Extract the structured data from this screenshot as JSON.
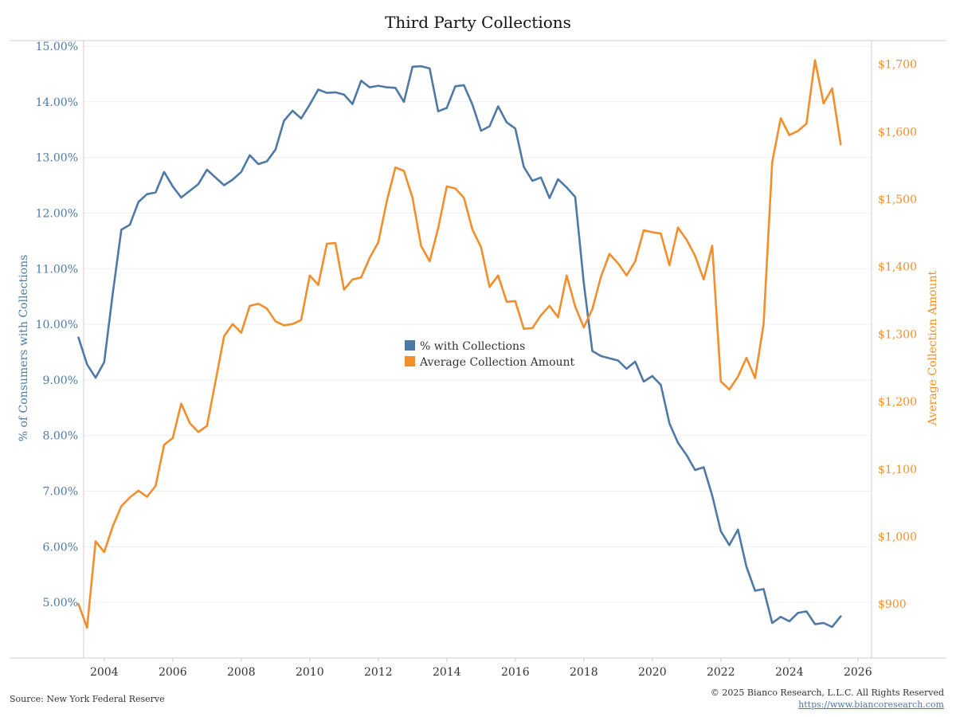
{
  "chart_data": {
    "type": "line",
    "title": "Third Party Collections",
    "ylabel_left": "% of Consumers with Collections",
    "ylabel_right": "Average Collection Amount",
    "x_ticks": [
      "2004",
      "2006",
      "2008",
      "2010",
      "2012",
      "2014",
      "2016",
      "2018",
      "2020",
      "2022",
      "2024",
      "2026"
    ],
    "y_left_ticks": [
      "5.00%",
      "6.00%",
      "7.00%",
      "8.00%",
      "9.00%",
      "10.00%",
      "11.00%",
      "12.00%",
      "13.00%",
      "14.00%",
      "15.00%"
    ],
    "y_right_ticks": [
      "$900",
      "$1,000",
      "$1,100",
      "$1,200",
      "$1,300",
      "$1,400",
      "$1,500",
      "$1,600",
      "$1,700"
    ],
    "ylim_left": [
      4.0,
      15.1
    ],
    "ylim_right": [
      820,
      1735
    ],
    "xlim": [
      2003.4,
      2026.4
    ],
    "grid": true,
    "legend_position": "center",
    "colors": {
      "pct": "#4e79a7",
      "amount": "#f28e2b"
    },
    "series": [
      {
        "name": "% with Collections",
        "axis": "left",
        "x": [
          2003.25,
          2003.5,
          2003.75,
          2004.0,
          2004.25,
          2004.5,
          2004.75,
          2005.0,
          2005.25,
          2005.5,
          2005.75,
          2006.0,
          2006.25,
          2006.5,
          2006.75,
          2007.0,
          2007.25,
          2007.5,
          2007.75,
          2008.0,
          2008.25,
          2008.5,
          2008.75,
          2009.0,
          2009.25,
          2009.5,
          2009.75,
          2010.0,
          2010.25,
          2010.5,
          2010.75,
          2011.0,
          2011.25,
          2011.5,
          2011.75,
          2012.0,
          2012.25,
          2012.5,
          2012.75,
          2013.0,
          2013.25,
          2013.5,
          2013.75,
          2014.0,
          2014.25,
          2014.5,
          2014.75,
          2015.0,
          2015.25,
          2015.5,
          2015.75,
          2016.0,
          2016.25,
          2016.5,
          2016.75,
          2017.0,
          2017.25,
          2017.5,
          2017.75,
          2018.0,
          2018.25,
          2018.5,
          2018.75,
          2019.0,
          2019.25,
          2019.5,
          2019.75,
          2020.0,
          2020.25,
          2020.5,
          2020.75,
          2021.0,
          2021.25,
          2021.5,
          2021.75,
          2022.0,
          2022.25,
          2022.5,
          2022.75,
          2023.0,
          2023.25,
          2023.5,
          2023.75,
          2024.0,
          2024.25,
          2024.5,
          2024.75,
          2025.0,
          2025.25,
          2025.5
        ],
        "values": [
          9.76,
          9.28,
          9.04,
          9.32,
          10.55,
          11.7,
          11.79,
          12.2,
          12.34,
          12.37,
          12.74,
          12.48,
          12.28,
          12.4,
          12.52,
          12.78,
          12.64,
          12.5,
          12.6,
          12.74,
          13.04,
          12.88,
          12.93,
          13.14,
          13.66,
          13.84,
          13.7,
          13.95,
          14.22,
          14.16,
          14.17,
          14.13,
          13.96,
          14.38,
          14.26,
          14.29,
          14.26,
          14.25,
          14.0,
          14.63,
          14.64,
          14.6,
          13.83,
          13.89,
          14.28,
          14.3,
          13.95,
          13.48,
          13.56,
          13.92,
          13.63,
          13.52,
          12.83,
          12.58,
          12.64,
          12.27,
          12.61,
          12.46,
          12.29,
          10.74,
          9.52,
          9.43,
          9.39,
          9.35,
          9.2,
          9.33,
          8.97,
          9.07,
          8.91,
          8.22,
          7.87,
          7.65,
          7.38,
          7.43,
          6.92,
          6.28,
          6.03,
          6.31,
          5.64,
          5.21,
          5.24,
          4.63,
          4.74,
          4.66,
          4.81,
          4.84,
          4.61,
          4.63,
          4.56,
          4.75
        ]
      },
      {
        "name": "Average Collection Amount",
        "axis": "right",
        "x": [
          2003.25,
          2003.5,
          2003.75,
          2004.0,
          2004.25,
          2004.5,
          2004.75,
          2005.0,
          2005.25,
          2005.5,
          2005.75,
          2006.0,
          2006.25,
          2006.5,
          2006.75,
          2007.0,
          2007.25,
          2007.5,
          2007.75,
          2008.0,
          2008.25,
          2008.5,
          2008.75,
          2009.0,
          2009.25,
          2009.5,
          2009.75,
          2010.0,
          2010.25,
          2010.5,
          2010.75,
          2011.0,
          2011.25,
          2011.5,
          2011.75,
          2012.0,
          2012.25,
          2012.5,
          2012.75,
          2013.0,
          2013.25,
          2013.5,
          2013.75,
          2014.0,
          2014.25,
          2014.5,
          2014.75,
          2015.0,
          2015.25,
          2015.5,
          2015.75,
          2016.0,
          2016.25,
          2016.5,
          2016.75,
          2017.0,
          2017.25,
          2017.5,
          2017.75,
          2018.0,
          2018.25,
          2018.5,
          2018.75,
          2019.0,
          2019.25,
          2019.5,
          2019.75,
          2020.0,
          2020.25,
          2020.5,
          2020.75,
          2021.0,
          2021.25,
          2021.5,
          2021.75,
          2022.0,
          2022.25,
          2022.5,
          2022.75,
          2023.0,
          2023.25,
          2023.5,
          2023.75,
          2024.0,
          2024.25,
          2024.5,
          2024.75,
          2025.0,
          2025.25,
          2025.5
        ],
        "values": [
          900,
          865,
          993,
          977,
          1015,
          1045,
          1058,
          1068,
          1059,
          1075,
          1136,
          1146,
          1197,
          1168,
          1155,
          1164,
          1230,
          1297,
          1315,
          1302,
          1342,
          1345,
          1338,
          1319,
          1313,
          1315,
          1321,
          1387,
          1373,
          1434,
          1435,
          1366,
          1381,
          1384,
          1413,
          1436,
          1497,
          1547,
          1542,
          1502,
          1431,
          1408,
          1457,
          1519,
          1516,
          1502,
          1455,
          1429,
          1370,
          1387,
          1348,
          1349,
          1308,
          1309,
          1328,
          1342,
          1325,
          1387,
          1341,
          1310,
          1337,
          1385,
          1419,
          1405,
          1387,
          1408,
          1454,
          1451,
          1449,
          1402,
          1458,
          1440,
          1416,
          1381,
          1431,
          1230,
          1218,
          1237,
          1265,
          1235,
          1315,
          1555,
          1620,
          1595,
          1601,
          1612,
          1706,
          1642,
          1664,
          1581
        ]
      }
    ]
  },
  "footer": {
    "source": "Source: New York Federal Reserve",
    "copyright": "© 2025 Bianco Research, L.L.C. All Rights Reserved",
    "website": "https://www.biancoresearch.com"
  }
}
